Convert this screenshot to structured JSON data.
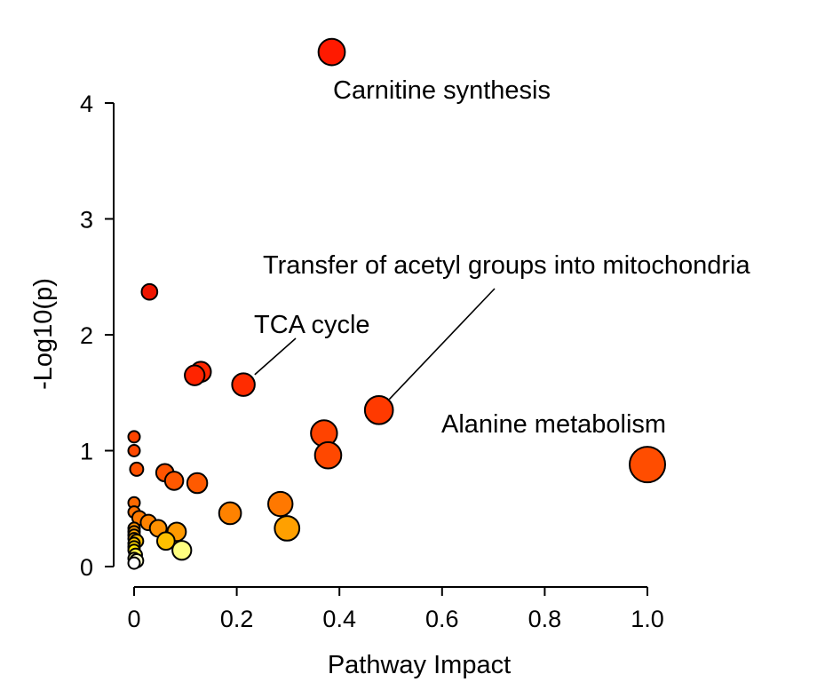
{
  "chart_data": {
    "type": "scatter",
    "title": "",
    "xlabel": "Pathway Impact",
    "ylabel": "-Log10(p)",
    "xlim": [
      0,
      1.0
    ],
    "ylim": [
      0,
      4
    ],
    "grid": false,
    "xticks": [
      {
        "value": 0,
        "label": "0"
      },
      {
        "value": 0.2,
        "label": "0.2"
      },
      {
        "value": 0.4,
        "label": "0.4"
      },
      {
        "value": 0.6,
        "label": "0.6"
      },
      {
        "value": 0.8,
        "label": "0.8"
      },
      {
        "value": 1.0,
        "label": "1.0"
      }
    ],
    "yticks": [
      {
        "value": 0,
        "label": "0"
      },
      {
        "value": 1,
        "label": "1"
      },
      {
        "value": 2,
        "label": "2"
      },
      {
        "value": 3,
        "label": "3"
      },
      {
        "value": 4,
        "label": "4"
      }
    ],
    "points": [
      {
        "x": 0.385,
        "y": 4.44,
        "color": "#ff1a00"
      },
      {
        "x": 0.03,
        "y": 2.37,
        "color": "#ee1500"
      },
      {
        "x": 0.13,
        "y": 1.68,
        "color": "#ff2800"
      },
      {
        "x": 0.118,
        "y": 1.65,
        "color": "#ff2400"
      },
      {
        "x": 0.213,
        "y": 1.57,
        "color": "#ff2c00"
      },
      {
        "x": 0.477,
        "y": 1.35,
        "color": "#ff3a00"
      },
      {
        "x": 0.37,
        "y": 1.15,
        "color": "#ff4300"
      },
      {
        "x": 0.378,
        "y": 0.96,
        "color": "#ff4800"
      },
      {
        "x": 1.0,
        "y": 0.88,
        "color": "#ff4d00"
      },
      {
        "x": 0.0,
        "y": 1.12,
        "color": "#ff4400"
      },
      {
        "x": 0.0,
        "y": 1.0,
        "color": "#ff4800"
      },
      {
        "x": 0.005,
        "y": 0.84,
        "color": "#ff5200"
      },
      {
        "x": 0.06,
        "y": 0.81,
        "color": "#ff5400"
      },
      {
        "x": 0.078,
        "y": 0.74,
        "color": "#ff5800"
      },
      {
        "x": 0.123,
        "y": 0.72,
        "color": "#ff5a00"
      },
      {
        "x": 0.0,
        "y": 0.55,
        "color": "#ff6800"
      },
      {
        "x": 0.0,
        "y": 0.47,
        "color": "#ff7100"
      },
      {
        "x": 0.01,
        "y": 0.42,
        "color": "#ff7a00"
      },
      {
        "x": 0.028,
        "y": 0.38,
        "color": "#ff8200"
      },
      {
        "x": 0.0,
        "y": 0.33,
        "color": "#ff9000"
      },
      {
        "x": 0.047,
        "y": 0.33,
        "color": "#ff9000"
      },
      {
        "x": 0.0,
        "y": 0.3,
        "color": "#ff9800"
      },
      {
        "x": 0.0,
        "y": 0.27,
        "color": "#ffa800"
      },
      {
        "x": 0.083,
        "y": 0.3,
        "color": "#ff9900"
      },
      {
        "x": 0.0,
        "y": 0.24,
        "color": "#ffb000"
      },
      {
        "x": 0.005,
        "y": 0.22,
        "color": "#ffbd00"
      },
      {
        "x": 0.0,
        "y": 0.2,
        "color": "#ffc800"
      },
      {
        "x": 0.0,
        "y": 0.17,
        "color": "#ffd800"
      },
      {
        "x": 0.0,
        "y": 0.14,
        "color": "#ffe800"
      },
      {
        "x": 0.003,
        "y": 0.1,
        "color": "#fff24d"
      },
      {
        "x": 0.0,
        "y": 0.07,
        "color": "#ffff99"
      },
      {
        "x": 0.005,
        "y": 0.05,
        "color": "#ffffcc"
      },
      {
        "x": 0.0,
        "y": 0.03,
        "color": "#ffffff"
      },
      {
        "x": 0.062,
        "y": 0.22,
        "color": "#ffc000"
      },
      {
        "x": 0.093,
        "y": 0.14,
        "color": "#ffff80"
      },
      {
        "x": 0.187,
        "y": 0.46,
        "color": "#ff8200"
      },
      {
        "x": 0.285,
        "y": 0.54,
        "color": "#ff7800"
      },
      {
        "x": 0.298,
        "y": 0.33,
        "color": "#ffa000"
      }
    ],
    "annotations": [
      {
        "text": "Carnitine synthesis"
      },
      {
        "text": "Transfer of acetyl groups into mitochondria",
        "x": 0.477,
        "y": 1.35
      },
      {
        "text": "TCA cycle",
        "x": 0.213,
        "y": 1.57
      },
      {
        "text": "Alanine metabolism"
      }
    ]
  }
}
